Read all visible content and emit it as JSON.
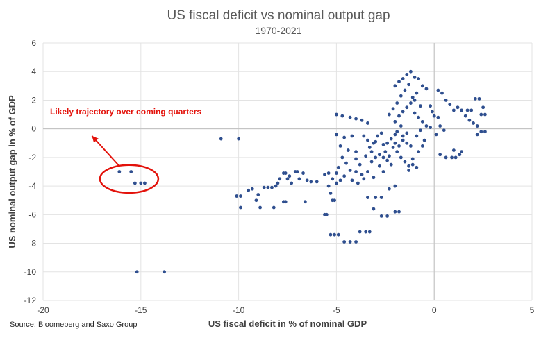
{
  "chart_data": {
    "type": "scatter",
    "title": "US fiscal deficit vs nominal output gap",
    "subtitle": "1970-2021",
    "xlabel": "US fiscal deficit in % of nominal GDP",
    "ylabel": "US nominal output gap in % of GDP",
    "xlim": [
      -20,
      5
    ],
    "ylim": [
      -12,
      6
    ],
    "xticks": [
      -20,
      -15,
      -10,
      -5,
      0,
      5
    ],
    "yticks": [
      -12,
      -10,
      -8,
      -6,
      -4,
      -2,
      0,
      2,
      4,
      6
    ],
    "grid": true,
    "marker_color": "#2f4f8f",
    "annotation": {
      "text": "Likely trajectory over coming quarters",
      "color": "#e3120b",
      "circle_center": [
        -15.6,
        -3.5
      ],
      "arrow_from": [
        -16.1,
        -2.6
      ],
      "arrow_to": [
        -17.5,
        -0.5
      ]
    },
    "points": [
      [
        -16.1,
        -3.0
      ],
      [
        -15.5,
        -3.0
      ],
      [
        -15.3,
        -3.8
      ],
      [
        -15.0,
        -3.8
      ],
      [
        -14.8,
        -3.8
      ],
      [
        -15.2,
        -10.0
      ],
      [
        -13.8,
        -10.0
      ],
      [
        -10.9,
        -0.7
      ],
      [
        -10.0,
        -0.7
      ],
      [
        -10.1,
        -4.7
      ],
      [
        -9.9,
        -4.7
      ],
      [
        -9.9,
        -5.5
      ],
      [
        -9.5,
        -4.3
      ],
      [
        -9.3,
        -4.2
      ],
      [
        -9.1,
        -5.0
      ],
      [
        -9.0,
        -4.6
      ],
      [
        -8.9,
        -5.5
      ],
      [
        -8.7,
        -4.1
      ],
      [
        -8.5,
        -4.1
      ],
      [
        -8.3,
        -4.1
      ],
      [
        -8.1,
        -4.0
      ],
      [
        -8.0,
        -3.8
      ],
      [
        -7.9,
        -3.5
      ],
      [
        -8.2,
        -5.5
      ],
      [
        -7.7,
        -3.1
      ],
      [
        -7.6,
        -3.1
      ],
      [
        -7.5,
        -3.5
      ],
      [
        -7.4,
        -3.3
      ],
      [
        -7.3,
        -3.8
      ],
      [
        -7.1,
        -3.0
      ],
      [
        -7.0,
        -3.0
      ],
      [
        -7.7,
        -5.1
      ],
      [
        -7.6,
        -5.1
      ],
      [
        -6.9,
        -3.5
      ],
      [
        -6.7,
        -3.1
      ],
      [
        -6.5,
        -3.6
      ],
      [
        -6.3,
        -3.7
      ],
      [
        -6.0,
        -3.7
      ],
      [
        -6.6,
        -5.1
      ],
      [
        -5.6,
        -3.2
      ],
      [
        -5.4,
        -3.1
      ],
      [
        -5.2,
        -3.5
      ],
      [
        -5.0,
        -3.8
      ],
      [
        -5.4,
        -4.0
      ],
      [
        -5.3,
        -4.5
      ],
      [
        -5.6,
        -6.0
      ],
      [
        -5.5,
        -6.0
      ],
      [
        -5.2,
        -5.0
      ],
      [
        -5.1,
        -5.0
      ],
      [
        -5.3,
        -7.4
      ],
      [
        -5.1,
        -7.4
      ],
      [
        -4.9,
        -7.4
      ],
      [
        -4.6,
        -7.9
      ],
      [
        -4.3,
        -7.9
      ],
      [
        -4.0,
        -7.9
      ],
      [
        -3.8,
        -7.2
      ],
      [
        -3.5,
        -7.2
      ],
      [
        -3.3,
        -7.2
      ],
      [
        -3.4,
        -4.8
      ],
      [
        -3.0,
        -4.8
      ],
      [
        -2.7,
        -4.8
      ],
      [
        -3.1,
        -5.6
      ],
      [
        -2.7,
        -6.1
      ],
      [
        -2.4,
        -6.1
      ],
      [
        -2.0,
        -5.8
      ],
      [
        -1.8,
        -5.8
      ],
      [
        -2.3,
        -4.2
      ],
      [
        -2.0,
        -4.0
      ],
      [
        -5.0,
        1.0
      ],
      [
        -4.7,
        0.9
      ],
      [
        -4.3,
        0.8
      ],
      [
        -4.0,
        0.7
      ],
      [
        -3.7,
        0.6
      ],
      [
        -3.4,
        0.4
      ],
      [
        -5.0,
        -0.4
      ],
      [
        -4.6,
        -0.6
      ],
      [
        -4.2,
        -0.5
      ],
      [
        -4.8,
        -1.2
      ],
      [
        -4.4,
        -1.5
      ],
      [
        -4.0,
        -1.6
      ],
      [
        -4.7,
        -2.0
      ],
      [
        -4.5,
        -2.4
      ],
      [
        -4.0,
        -2.1
      ],
      [
        -3.8,
        -2.5
      ],
      [
        -3.5,
        -1.9
      ],
      [
        -3.2,
        -2.3
      ],
      [
        -4.9,
        -2.7
      ],
      [
        -4.3,
        -2.9
      ],
      [
        -4.0,
        -3.0
      ],
      [
        -3.7,
        -3.2
      ],
      [
        -3.4,
        -3.0
      ],
      [
        -3.1,
        -3.4
      ],
      [
        -4.6,
        -3.3
      ],
      [
        -4.2,
        -3.6
      ],
      [
        -3.9,
        -3.8
      ],
      [
        -3.6,
        -3.5
      ],
      [
        -5.0,
        -3.1
      ],
      [
        -4.8,
        -3.6
      ],
      [
        -3.0,
        -0.9
      ],
      [
        -2.9,
        -0.5
      ],
      [
        -2.7,
        -0.3
      ],
      [
        -2.6,
        -1.1
      ],
      [
        -2.5,
        -1.6
      ],
      [
        -2.3,
        -1.9
      ],
      [
        -3.3,
        -1.3
      ],
      [
        -3.1,
        -1.0
      ],
      [
        -2.8,
        -1.8
      ],
      [
        -2.6,
        -2.0
      ],
      [
        -2.4,
        -2.2
      ],
      [
        -2.2,
        -2.5
      ],
      [
        -2.0,
        -0.4
      ],
      [
        -1.9,
        -0.2
      ],
      [
        -1.7,
        0.2
      ],
      [
        -1.6,
        -0.8
      ],
      [
        -1.4,
        -1.0
      ],
      [
        -1.2,
        -1.2
      ],
      [
        -2.1,
        -1.3
      ],
      [
        -1.9,
        -1.6
      ],
      [
        -1.7,
        -2.0
      ],
      [
        -1.5,
        -2.3
      ],
      [
        -1.3,
        -2.6
      ],
      [
        -1.1,
        -2.1
      ],
      [
        -2.0,
        0.5
      ],
      [
        -1.8,
        0.9
      ],
      [
        -1.6,
        1.2
      ],
      [
        -1.4,
        1.5
      ],
      [
        -1.2,
        1.8
      ],
      [
        -1.0,
        2.0
      ],
      [
        -2.3,
        1.0
      ],
      [
        -2.1,
        1.4
      ],
      [
        -1.9,
        1.8
      ],
      [
        -1.7,
        2.3
      ],
      [
        -1.5,
        2.7
      ],
      [
        -1.3,
        3.1
      ],
      [
        -2.0,
        3.0
      ],
      [
        -1.8,
        3.3
      ],
      [
        -1.6,
        3.5
      ],
      [
        -1.4,
        3.8
      ],
      [
        -1.2,
        4.0
      ],
      [
        -1.0,
        3.6
      ],
      [
        -0.8,
        3.5
      ],
      [
        -0.6,
        3.0
      ],
      [
        -0.4,
        2.8
      ],
      [
        -0.9,
        2.5
      ],
      [
        -1.1,
        2.2
      ],
      [
        -0.7,
        1.6
      ],
      [
        -1.0,
        1.1
      ],
      [
        -0.8,
        0.8
      ],
      [
        -0.6,
        0.5
      ],
      [
        -0.4,
        0.2
      ],
      [
        -0.7,
        -0.1
      ],
      [
        -0.9,
        -0.5
      ],
      [
        -0.2,
        1.6
      ],
      [
        -0.1,
        1.2
      ],
      [
        0.0,
        0.9
      ],
      [
        0.2,
        0.8
      ],
      [
        0.3,
        0.2
      ],
      [
        0.5,
        -0.1
      ],
      [
        0.2,
        2.7
      ],
      [
        0.4,
        2.5
      ],
      [
        0.6,
        2.0
      ],
      [
        0.8,
        1.7
      ],
      [
        1.0,
        1.3
      ],
      [
        1.2,
        1.5
      ],
      [
        1.4,
        1.3
      ],
      [
        1.6,
        0.9
      ],
      [
        1.8,
        0.6
      ],
      [
        2.0,
        0.4
      ],
      [
        2.2,
        0.2
      ],
      [
        2.4,
        1.0
      ],
      [
        1.7,
        1.3
      ],
      [
        1.9,
        1.3
      ],
      [
        2.1,
        2.1
      ],
      [
        2.3,
        2.1
      ],
      [
        2.5,
        1.5
      ],
      [
        2.6,
        1.0
      ],
      [
        2.2,
        -0.4
      ],
      [
        2.4,
        -0.2
      ],
      [
        2.6,
        -0.2
      ],
      [
        0.6,
        -2.0
      ],
      [
        0.9,
        -2.0
      ],
      [
        1.1,
        -2.0
      ],
      [
        1.0,
        -1.5
      ],
      [
        1.3,
        -1.8
      ],
      [
        1.4,
        -1.6
      ],
      [
        0.3,
        -1.8
      ],
      [
        0.1,
        -0.4
      ],
      [
        -0.2,
        0.1
      ],
      [
        -0.5,
        -0.8
      ],
      [
        -0.6,
        -1.2
      ],
      [
        -0.8,
        -1.6
      ],
      [
        -1.1,
        -2.5
      ],
      [
        -1.3,
        -2.9
      ],
      [
        -0.9,
        -2.7
      ],
      [
        -3.6,
        -0.5
      ],
      [
        -3.4,
        -0.8
      ],
      [
        -3.2,
        -1.6
      ],
      [
        -3.0,
        -2.0
      ],
      [
        -2.8,
        -2.6
      ],
      [
        -2.6,
        -3.0
      ],
      [
        -2.4,
        -1.0
      ],
      [
        -2.2,
        -0.7
      ],
      [
        -2.0,
        -1.0
      ],
      [
        -1.8,
        -1.2
      ],
      [
        -1.6,
        -0.5
      ],
      [
        -1.4,
        -0.3
      ]
    ]
  },
  "source": "Source: Bloomeberg and Saxo Group"
}
